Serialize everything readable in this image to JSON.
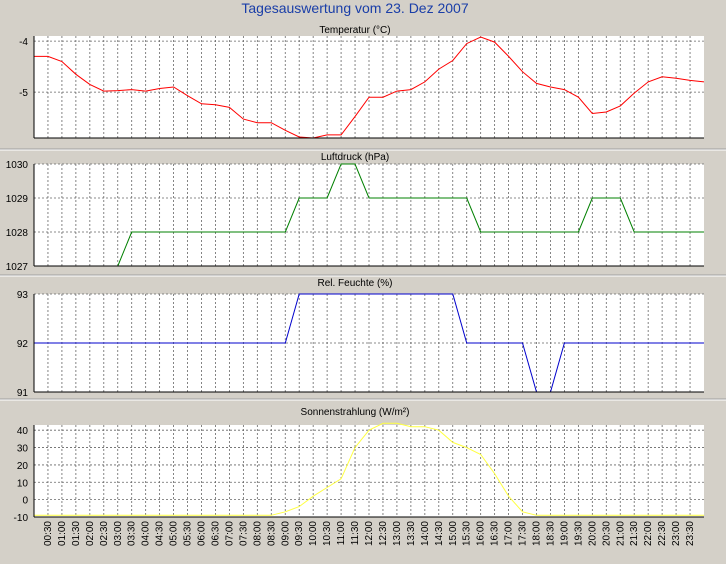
{
  "title": "Tagesauswertung vom 23. Dez 2007",
  "colors": {
    "background": "#d4d0c8",
    "plot_background": "#ffffff",
    "title": "#1a3ea8",
    "temperature": "#ff0000",
    "pressure": "#008000",
    "humidity": "#0000cc",
    "radiation": "#ffff40"
  },
  "x_ticks": [
    "00:30",
    "01:00",
    "01:30",
    "02:00",
    "02:30",
    "03:00",
    "03:30",
    "04:00",
    "04:30",
    "05:00",
    "05:30",
    "06:00",
    "06:30",
    "07:00",
    "07:30",
    "08:00",
    "08:30",
    "09:00",
    "09:30",
    "10:00",
    "10:30",
    "11:00",
    "11:30",
    "12:00",
    "12:30",
    "13:00",
    "13:30",
    "14:00",
    "14:30",
    "15:00",
    "15:30",
    "16:00",
    "16:30",
    "17:00",
    "17:30",
    "18:00",
    "18:30",
    "19:00",
    "19:30",
    "20:00",
    "20:30",
    "21:00",
    "21:30",
    "22:00",
    "22:30",
    "23:00",
    "23:30"
  ],
  "chart_data": [
    {
      "type": "line",
      "title": "Temperatur (°C)",
      "ylim": [
        -5.9,
        -3.9
      ],
      "yticks": [
        -5,
        -4
      ],
      "grid": true,
      "series": [
        {
          "color": "#ff0000",
          "x": [
            "00:00",
            "00:30",
            "01:00",
            "01:30",
            "02:00",
            "02:30",
            "03:00",
            "03:30",
            "04:00",
            "04:30",
            "05:00",
            "05:30",
            "06:00",
            "06:30",
            "07:00",
            "07:30",
            "08:00",
            "08:30",
            "09:00",
            "09:30",
            "10:00",
            "10:30",
            "11:00",
            "11:30",
            "12:00",
            "12:30",
            "13:00",
            "13:30",
            "14:00",
            "14:30",
            "15:00",
            "15:30",
            "16:00",
            "16:30",
            "17:00",
            "17:30",
            "18:00",
            "18:30",
            "19:00",
            "19:30",
            "20:00",
            "20:30",
            "21:00",
            "21:30",
            "22:00",
            "22:30",
            "23:00",
            "23:30",
            "24:00"
          ],
          "values": [
            -4.3,
            -4.3,
            -4.4,
            -4.65,
            -4.85,
            -4.98,
            -4.97,
            -4.95,
            -4.98,
            -4.93,
            -4.9,
            -5.07,
            -5.23,
            -5.25,
            -5.3,
            -5.53,
            -5.6,
            -5.6,
            -5.75,
            -5.88,
            -5.9,
            -5.84,
            -5.84,
            -5.48,
            -5.1,
            -5.1,
            -4.98,
            -4.95,
            -4.8,
            -4.55,
            -4.38,
            -4.05,
            -3.92,
            -4.02,
            -4.3,
            -4.6,
            -4.83,
            -4.9,
            -4.95,
            -5.1,
            -5.42,
            -5.39,
            -5.27,
            -5.02,
            -4.8,
            -4.7,
            -4.73,
            -4.77,
            -4.8
          ]
        }
      ]
    },
    {
      "type": "line",
      "title": "Luftdruck (hPa)",
      "ylim": [
        1027,
        1030
      ],
      "yticks": [
        1027,
        1028,
        1029,
        1030
      ],
      "grid": true,
      "series": [
        {
          "color": "#008000",
          "x": [
            "03:00",
            "03:30",
            "09:00",
            "09:30",
            "10:30",
            "11:00",
            "11:30",
            "12:00",
            "15:30",
            "16:00",
            "19:30",
            "20:00",
            "21:00",
            "21:30",
            "24:00"
          ],
          "values": [
            1027,
            1028,
            1028,
            1029,
            1029,
            1030,
            1030,
            1029,
            1029,
            1028,
            1028,
            1029,
            1029,
            1028,
            1028
          ]
        }
      ]
    },
    {
      "type": "line",
      "title": "Rel. Feuchte (%)",
      "ylim": [
        91,
        93
      ],
      "yticks": [
        91,
        92,
        93
      ],
      "grid": true,
      "series": [
        {
          "color": "#0000cc",
          "x": [
            "00:00",
            "09:00",
            "09:30",
            "15:00",
            "15:30",
            "17:30",
            "18:00",
            "18:30",
            "19:00",
            "24:00"
          ],
          "values": [
            92,
            92,
            93,
            93,
            92,
            92,
            91,
            91,
            92,
            92
          ]
        }
      ]
    },
    {
      "type": "line",
      "title": "Sonnenstrahlung (W/m²)",
      "ylim": [
        -10,
        43
      ],
      "yticks": [
        -10,
        0,
        10,
        20,
        30,
        40
      ],
      "grid": true,
      "series": [
        {
          "color": "#ffff40",
          "x": [
            "00:00",
            "03:00",
            "06:00",
            "08:00",
            "08:30",
            "09:00",
            "09:30",
            "10:00",
            "10:30",
            "11:00",
            "11:30",
            "12:00",
            "12:30",
            "13:00",
            "13:30",
            "14:00",
            "14:30",
            "15:00",
            "15:30",
            "16:00",
            "16:30",
            "17:00",
            "17:30",
            "18:00",
            "19:00",
            "20:00",
            "21:00",
            "22:00",
            "24:00"
          ],
          "values": [
            -9,
            -9,
            -9,
            -9,
            -9,
            -7,
            -4,
            2,
            7,
            12,
            30,
            40,
            44,
            44,
            42,
            42,
            40,
            33,
            30,
            26,
            15,
            2,
            -7,
            -9,
            -9,
            -9,
            -9,
            -9,
            -9
          ]
        }
      ]
    }
  ]
}
